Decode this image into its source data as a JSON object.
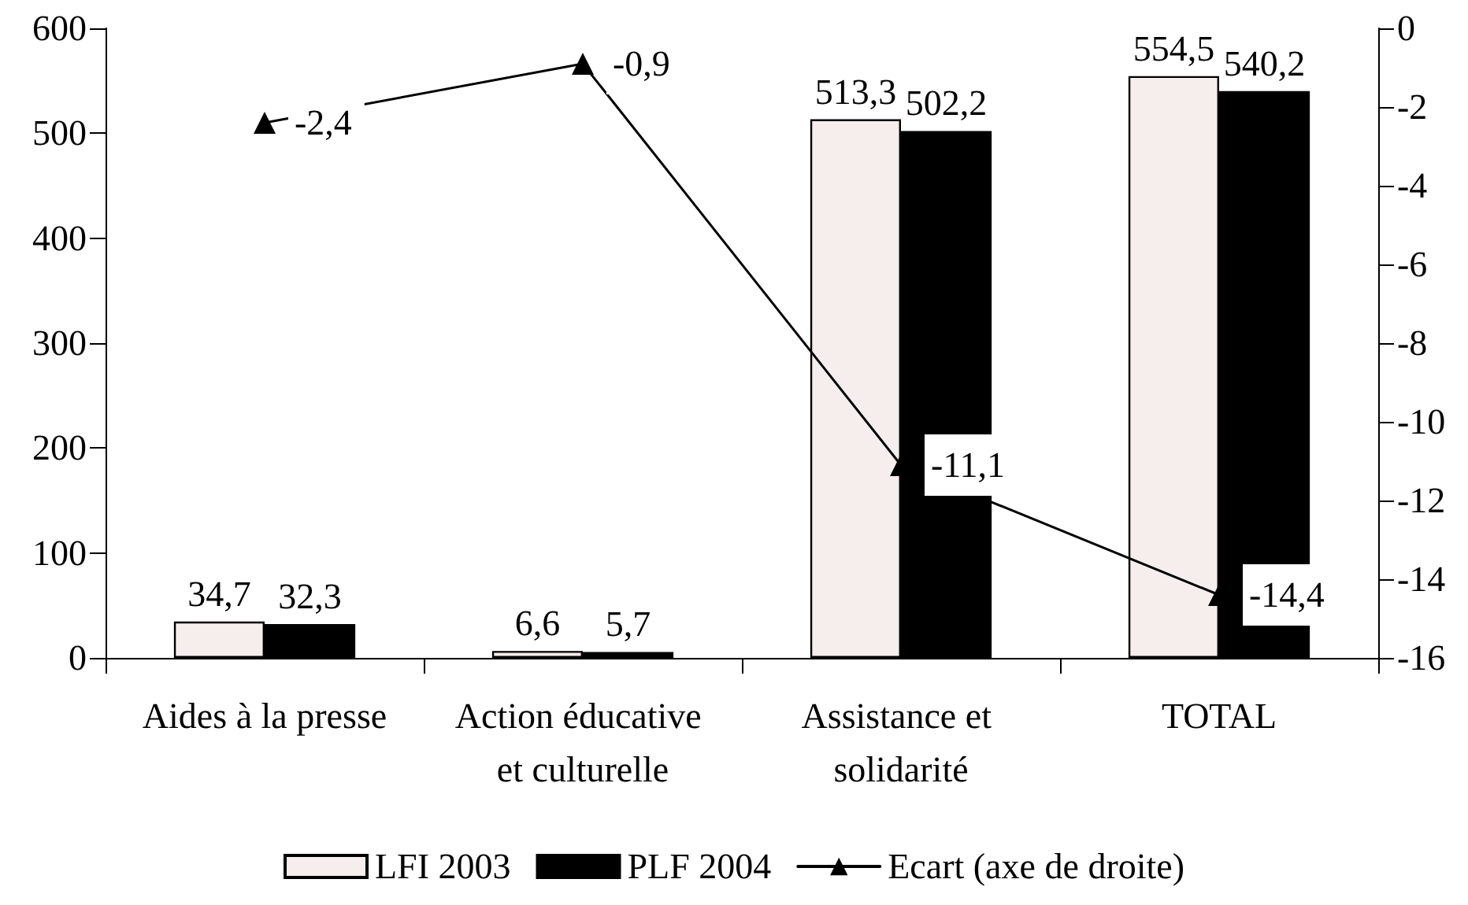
{
  "chart_data": {
    "type": "bar",
    "categories": [
      "Aides à la presse",
      "Action éducative et culturelle",
      "Assistance et solidarité",
      "TOTAL"
    ],
    "series": [
      {
        "name": "LFI 2003",
        "color": "#f6eded",
        "values": [
          34.7,
          6.6,
          513.3,
          554.5
        ],
        "value_labels": [
          "34,7",
          "6,6",
          "513,3",
          "554,5"
        ]
      },
      {
        "name": "PLF 2004",
        "color": "#000000",
        "values": [
          32.3,
          5.7,
          502.2,
          540.2
        ],
        "value_labels": [
          "32,3",
          "5,7",
          "502,2",
          "540,2"
        ]
      },
      {
        "name": "Ecart (axe de droite)",
        "type": "line",
        "axis": "y2",
        "color": "#000000",
        "marker": "triangle",
        "line_style": "solid",
        "values": [
          -2.4,
          -0.9,
          -11.1,
          -14.4
        ],
        "value_labels": [
          "-2,4",
          "-0,9",
          "-11,1",
          "-14,4"
        ]
      }
    ],
    "ylim": [
      0,
      600
    ],
    "yticks": [
      0,
      100,
      200,
      300,
      400,
      500,
      600
    ],
    "y2lim": [
      -16,
      0
    ],
    "y2ticks": [
      -16,
      -14,
      -12,
      -10,
      -8,
      -6,
      -4,
      -2,
      0
    ],
    "grid": false,
    "legend": "bottom"
  }
}
